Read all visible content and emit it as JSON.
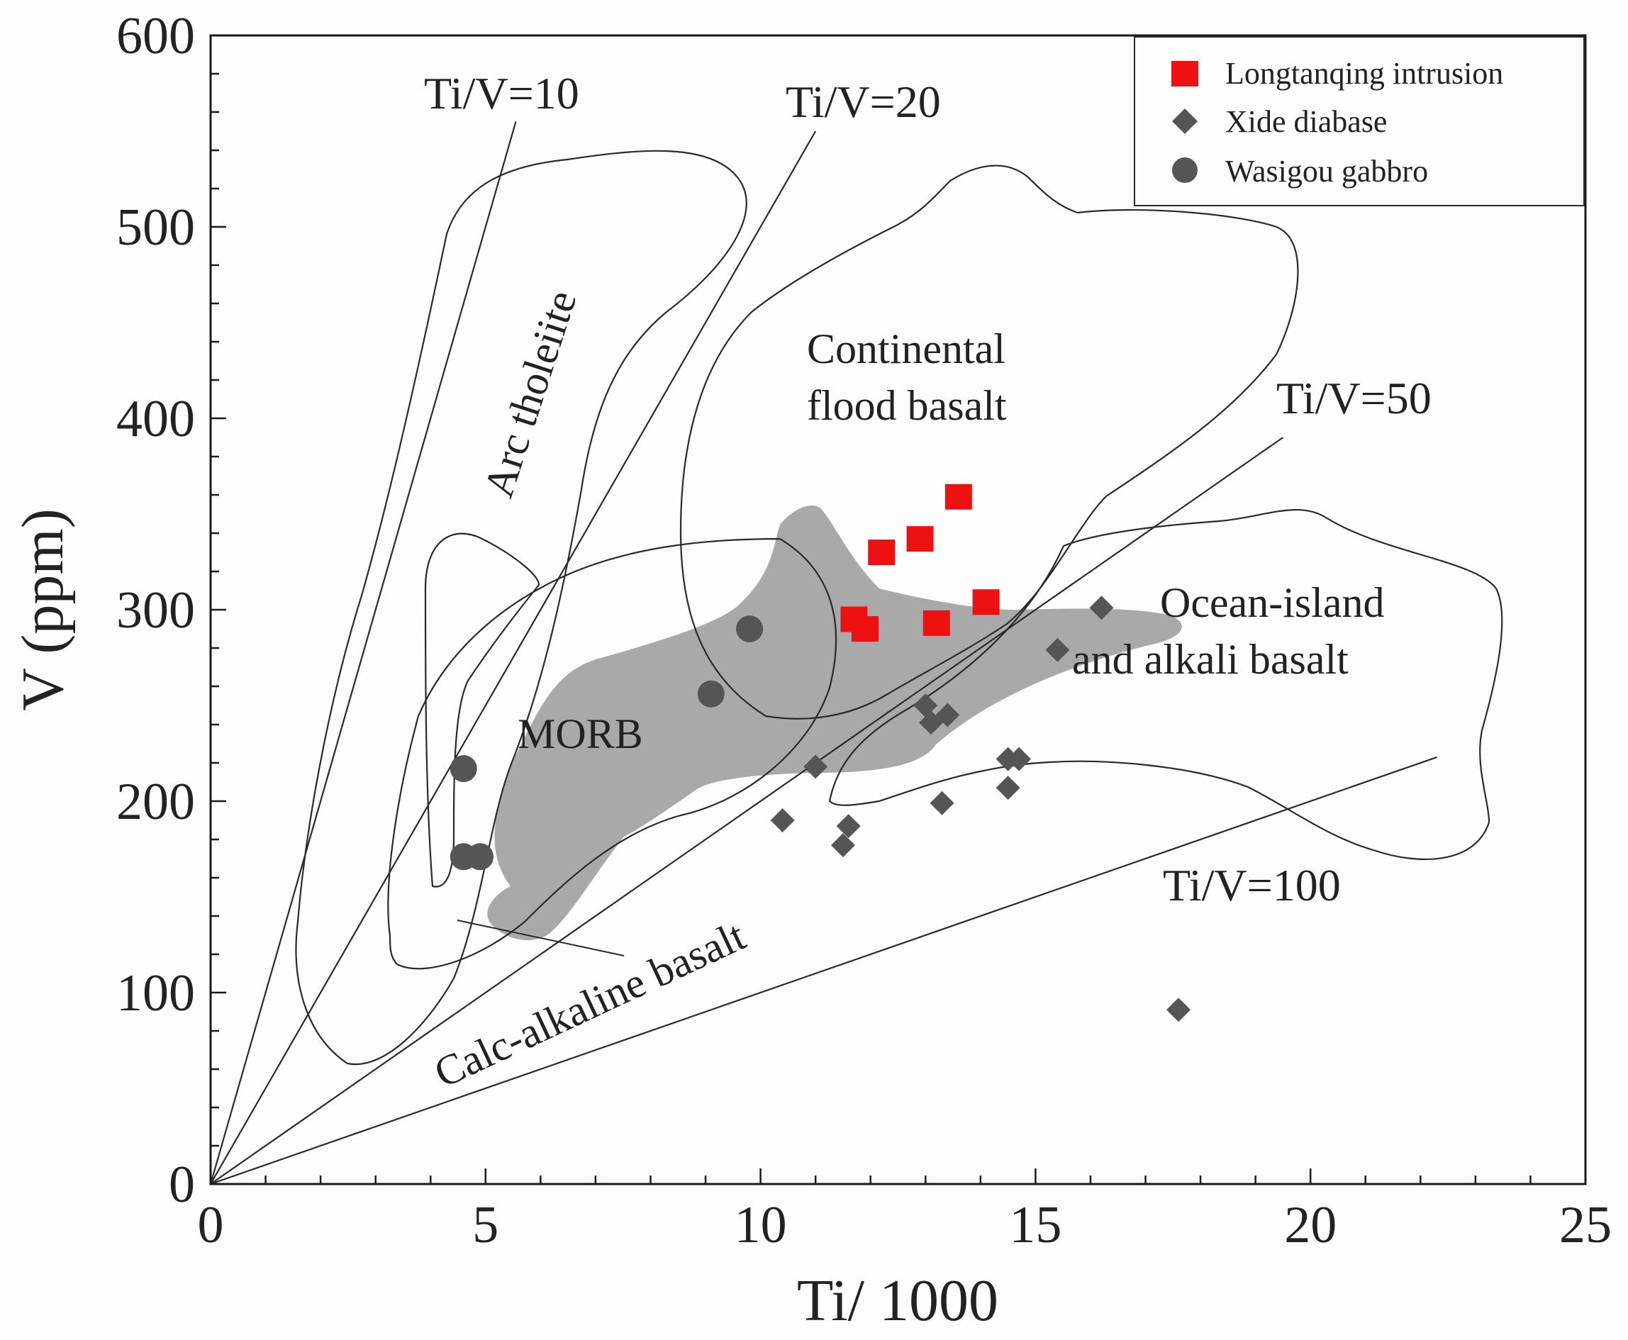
{
  "chart_data": {
    "type": "scatter",
    "title": "",
    "xlabel": "Ti/ 1000",
    "ylabel": "V (ppm)",
    "xlim": [
      0,
      25
    ],
    "ylim": [
      0,
      600
    ],
    "xticks": [
      0,
      5,
      10,
      15,
      20,
      25
    ],
    "yticks": [
      0,
      100,
      200,
      300,
      400,
      500,
      600
    ],
    "grid": false,
    "legend_position": "top-right",
    "series": [
      {
        "name": "Longtanqing intrusion",
        "marker": "square",
        "color": "#ee1111",
        "points": [
          [
            13.6,
            359
          ],
          [
            12.9,
            337
          ],
          [
            12.2,
            330
          ],
          [
            14.1,
            304
          ],
          [
            11.7,
            295
          ],
          [
            11.9,
            290
          ],
          [
            13.2,
            293
          ]
        ]
      },
      {
        "name": "Xide diabase",
        "marker": "diamond",
        "color": "#555555",
        "points": [
          [
            16.2,
            301
          ],
          [
            15.4,
            279
          ],
          [
            13.0,
            250
          ],
          [
            13.4,
            245
          ],
          [
            13.1,
            241
          ],
          [
            11.0,
            218
          ],
          [
            14.5,
            222
          ],
          [
            14.7,
            222
          ],
          [
            14.5,
            207
          ],
          [
            13.3,
            199
          ],
          [
            10.4,
            190
          ],
          [
            11.6,
            187
          ],
          [
            11.5,
            177
          ],
          [
            17.6,
            91
          ]
        ]
      },
      {
        "name": "Wasigou gabbro",
        "marker": "circle",
        "color": "#555555",
        "points": [
          [
            9.8,
            290
          ],
          [
            9.1,
            256
          ],
          [
            4.6,
            217
          ],
          [
            4.6,
            171
          ],
          [
            4.9,
            171
          ]
        ]
      }
    ],
    "ratio_lines": [
      {
        "label": "Ti/V=10",
        "ratio": 10,
        "x_end": 5.55
      },
      {
        "label": "Ti/V=20",
        "ratio": 20,
        "x_end": 11.0
      },
      {
        "label": "Ti/V=50",
        "ratio": 50,
        "x_end": 19.5
      },
      {
        "label": "Ti/V=100",
        "ratio": 100,
        "x_end": 22.3
      }
    ],
    "field_labels": [
      {
        "id": "arc-tholeiite",
        "text": "Arc tholeiite"
      },
      {
        "id": "continental-line1",
        "text": "Continental"
      },
      {
        "id": "continental-line2",
        "text": "flood basalt"
      },
      {
        "id": "ocean-line1",
        "text": "Ocean-island"
      },
      {
        "id": "ocean-line2",
        "text": "and alkali basalt"
      },
      {
        "id": "morb",
        "text": "MORB"
      },
      {
        "id": "calc-alkaline",
        "text": "Calc-alkaline basalt"
      }
    ]
  }
}
